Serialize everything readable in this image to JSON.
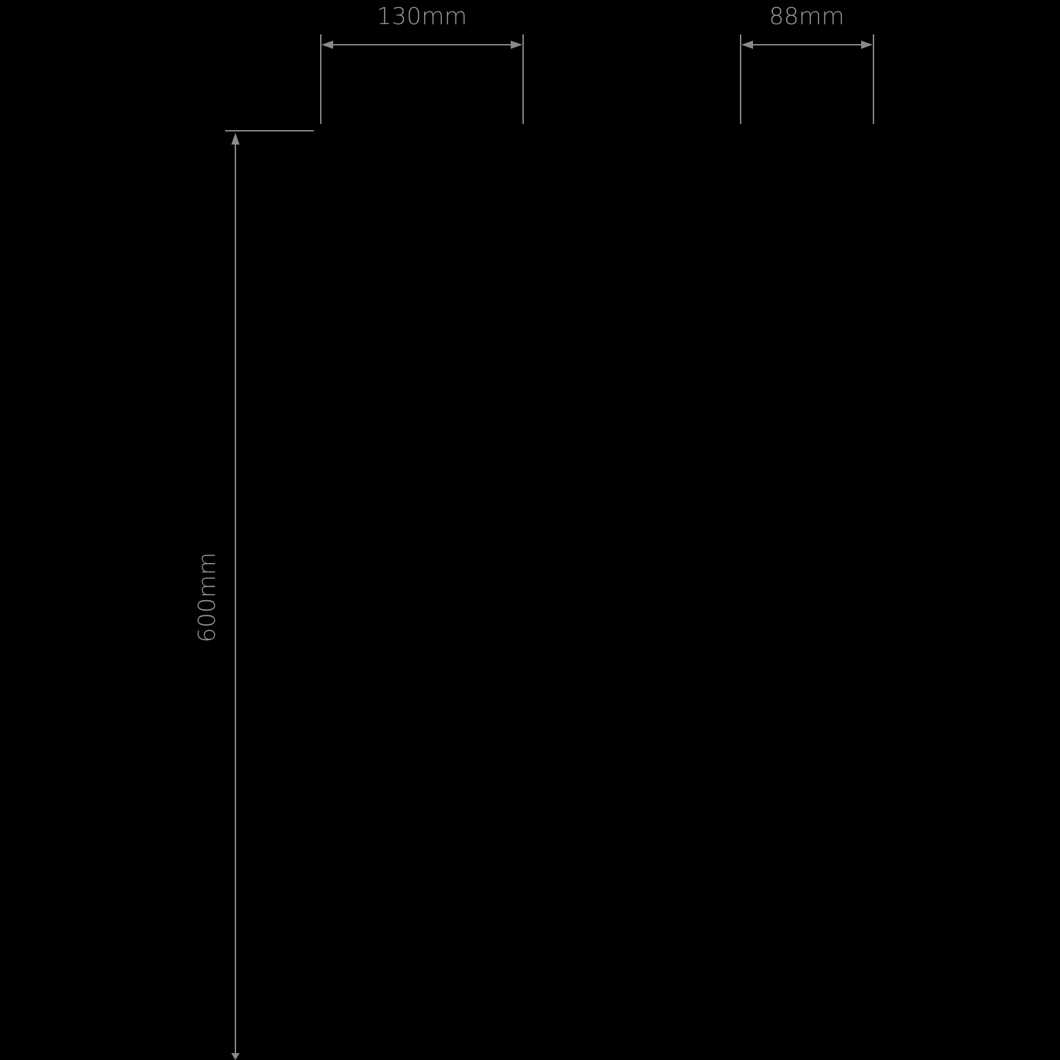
{
  "dimensions": {
    "width_a": "130mm",
    "width_b": "88mm",
    "height": "600mm"
  },
  "colors": {
    "background": "#000000",
    "line": "#8a8a8a",
    "text": "#9a9a9a"
  }
}
